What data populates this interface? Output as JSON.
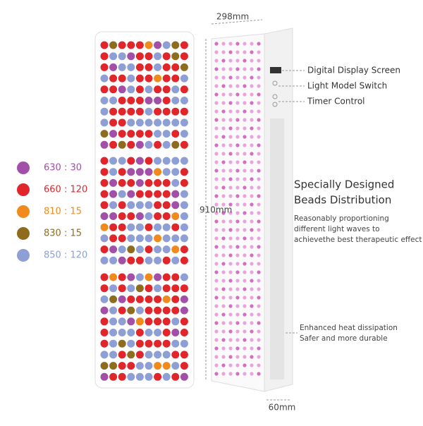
{
  "legend": [
    {
      "label": "630 : 30",
      "color": "#a24fa8"
    },
    {
      "label": "660 : 120",
      "color": "#e0262b"
    },
    {
      "label": "810 : 15",
      "color": "#f08a1d"
    },
    {
      "label": "830 : 15",
      "color": "#8e6c1e"
    },
    {
      "label": "850 : 120",
      "color": "#8e9fd6"
    }
  ],
  "dimensions": {
    "width": "298mm",
    "height": "910mm",
    "depth": "60mm"
  },
  "callouts": [
    "Digital Display Screen",
    "Light Model Switch",
    "Timer Control"
  ],
  "feature": {
    "title": [
      "Specially Designed",
      "Beads Distribution"
    ],
    "description": [
      "Reasonably proportioning",
      "different light waves to",
      "achievethe best therapeutic effect"
    ]
  },
  "heat": [
    "Enhanced heat dissipation",
    "Safer and more durable"
  ]
}
